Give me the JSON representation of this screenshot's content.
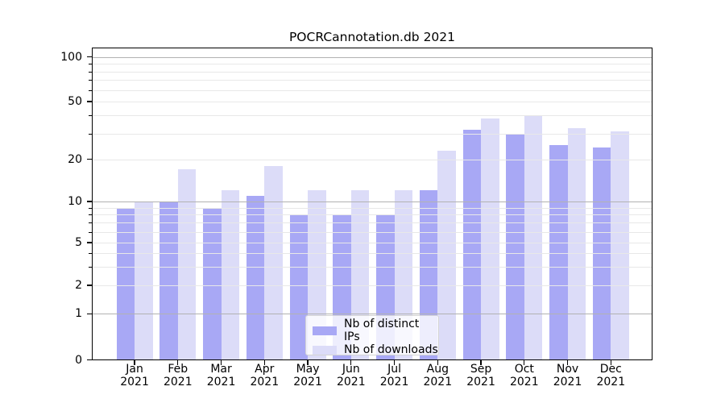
{
  "chart_data": {
    "type": "bar",
    "title": "POCRCannotation.db 2021",
    "x_tick_year": "2021",
    "categories": [
      "Jan",
      "Feb",
      "Mar",
      "Apr",
      "May",
      "Jun",
      "Jul",
      "Aug",
      "Sep",
      "Oct",
      "Nov",
      "Dec"
    ],
    "series": [
      {
        "name": "Nb of distinct IPs",
        "color": "#a8a8f5",
        "values": [
          9,
          10,
          9,
          11,
          8,
          8,
          8,
          12,
          32,
          30,
          25,
          24
        ]
      },
      {
        "name": "Nb of downloads",
        "color": "#dcdcf8",
        "values": [
          10,
          17,
          12,
          18,
          12,
          12,
          12,
          23,
          38,
          40,
          33,
          31
        ]
      }
    ],
    "y_axis": {
      "scale": "symlog",
      "tick_labels": [
        0,
        1,
        2,
        5,
        10,
        20,
        50,
        100
      ],
      "minor_gridlines": [
        2,
        3,
        4,
        5,
        6,
        7,
        8,
        9,
        20,
        30,
        40,
        50,
        60,
        70,
        80,
        90
      ],
      "major_gridlines": [
        1,
        10,
        100
      ],
      "ylim": [
        0,
        115
      ],
      "grid": "both"
    },
    "legend": {
      "position": "lower center"
    }
  }
}
